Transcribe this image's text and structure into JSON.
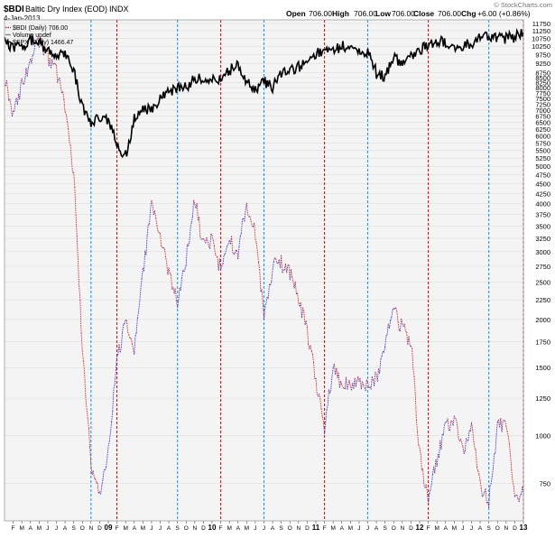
{
  "header": {
    "symbol": "$BDI",
    "name": "Baltic Dry Index (EOD)",
    "exchange": "INDX",
    "date": "4-Jan-2013",
    "open_label": "Open",
    "open": "706.00",
    "high_label": "High",
    "high": "706.00",
    "low_label": "Low",
    "low": "706.00",
    "close_label": "Close",
    "close": "706.00",
    "chg_label": "Chg",
    "chg": "+6.00 (+0.86%)",
    "source": "© StockCharts.com"
  },
  "legend": {
    "items": [
      {
        "label": "$BDI (Daily) 706.00",
        "color": "#9b3b6c",
        "dashed": true
      },
      {
        "label": "Volume undef",
        "color": "#888888",
        "dashed": false
      },
      {
        "label": "$SPX (Daily) 1466.47",
        "color": "#000000",
        "dashed": false
      }
    ]
  },
  "colors": {
    "bdi_up": "#3b3bcc",
    "bdi_down": "#cc2b2b",
    "spx": "#000000",
    "plot_bg": "#f4f4f4",
    "red_marker": "#dd1111",
    "blue_marker": "#1e9be0",
    "grid": "#d8d8d8"
  },
  "chart_data": {
    "type": "line",
    "scale": "log",
    "x_range": [
      "2008-01",
      "2013-01"
    ],
    "ylim": [
      600,
      12000
    ],
    "y_ticks": [
      750,
      1000,
      1250,
      1500,
      1750,
      2000,
      2250,
      2500,
      2750,
      3000,
      3250,
      3500,
      3750,
      4000,
      4250,
      4500,
      4750,
      5000,
      5250,
      5500,
      5750,
      6000,
      6250,
      6500,
      6750,
      7000,
      7250,
      7500,
      7750,
      8000,
      8250,
      8500,
      8750,
      9250,
      9750,
      10250,
      10750,
      11250,
      11750
    ],
    "x_tick_labels": [
      "F",
      "M",
      "A",
      "M",
      "J",
      "J",
      "A",
      "S",
      "O",
      "N",
      "D",
      "09",
      "F",
      "M",
      "A",
      "M",
      "J",
      "J",
      "A",
      "S",
      "O",
      "N",
      "D",
      "10",
      "F",
      "M",
      "A",
      "M",
      "J",
      "J",
      "A",
      "S",
      "O",
      "N",
      "D",
      "11",
      "F",
      "M",
      "A",
      "M",
      "J",
      "J",
      "A",
      "S",
      "O",
      "N",
      "D",
      "12",
      "F",
      "M",
      "A",
      "M",
      "J",
      "J",
      "A",
      "S",
      "O",
      "N",
      "D",
      "13"
    ],
    "year_tick_labels": [
      "09",
      "10",
      "11",
      "12",
      "13"
    ],
    "vertical_markers": {
      "red": [
        "F",
        "F",
        "F",
        "F",
        "D"
      ],
      "blue": [
        "N",
        "S",
        "J",
        "J",
        "S"
      ]
    },
    "series": [
      {
        "name": "$BDI (Daily)",
        "style": "dashed",
        "points": [
          [
            "2008-01",
            8600
          ],
          [
            "2008-02",
            6800
          ],
          [
            "2008-03",
            8200
          ],
          [
            "2008-04",
            9300
          ],
          [
            "2008-05",
            10700
          ],
          [
            "2008-06",
            9600
          ],
          [
            "2008-07",
            8800
          ],
          [
            "2008-08",
            7200
          ],
          [
            "2008-09",
            4800
          ],
          [
            "2008-10",
            1700
          ],
          [
            "2008-11",
            840
          ],
          [
            "2008-12",
            700
          ],
          [
            "2009-01",
            900
          ],
          [
            "2009-02",
            1600
          ],
          [
            "2009-03",
            1950
          ],
          [
            "2009-04",
            1650
          ],
          [
            "2009-05",
            2600
          ],
          [
            "2009-06",
            4000
          ],
          [
            "2009-07",
            3300
          ],
          [
            "2009-08",
            2600
          ],
          [
            "2009-09",
            2250
          ],
          [
            "2009-10",
            2900
          ],
          [
            "2009-11",
            4100
          ],
          [
            "2009-12",
            3100
          ],
          [
            "2010-01",
            3200
          ],
          [
            "2010-02",
            2700
          ],
          [
            "2010-03",
            3200
          ],
          [
            "2010-04",
            3000
          ],
          [
            "2010-05",
            4000
          ],
          [
            "2010-06",
            3400
          ],
          [
            "2010-07",
            2000
          ],
          [
            "2010-08",
            2750
          ],
          [
            "2010-09",
            2800
          ],
          [
            "2010-10",
            2650
          ],
          [
            "2010-11",
            2300
          ],
          [
            "2010-12",
            1850
          ],
          [
            "2011-01",
            1400
          ],
          [
            "2011-02",
            1050
          ],
          [
            "2011-03",
            1500
          ],
          [
            "2011-04",
            1350
          ],
          [
            "2011-05",
            1350
          ],
          [
            "2011-06",
            1400
          ],
          [
            "2011-07",
            1350
          ],
          [
            "2011-08",
            1400
          ],
          [
            "2011-09",
            1750
          ],
          [
            "2011-10",
            2100
          ],
          [
            "2011-11",
            1900
          ],
          [
            "2011-12",
            1750
          ],
          [
            "2012-01",
            900
          ],
          [
            "2012-02",
            680
          ],
          [
            "2012-03",
            870
          ],
          [
            "2012-04",
            1050
          ],
          [
            "2012-05",
            1100
          ],
          [
            "2012-06",
            920
          ],
          [
            "2012-07",
            1050
          ],
          [
            "2012-08",
            730
          ],
          [
            "2012-09",
            680
          ],
          [
            "2012-10",
            1050
          ],
          [
            "2012-11",
            1100
          ],
          [
            "2012-12",
            700
          ],
          [
            "2013-01",
            706
          ]
        ]
      },
      {
        "name": "$SPX (Daily)",
        "style": "solid",
        "points": [
          [
            "2008-01",
            1380
          ],
          [
            "2008-02",
            1330
          ],
          [
            "2008-03",
            1360
          ],
          [
            "2008-04",
            1390
          ],
          [
            "2008-05",
            1400
          ],
          [
            "2008-06",
            1300
          ],
          [
            "2008-07",
            1270
          ],
          [
            "2008-08",
            1280
          ],
          [
            "2008-09",
            1170
          ],
          [
            "2008-10",
            930
          ],
          [
            "2008-11",
            850
          ],
          [
            "2008-12",
            890
          ],
          [
            "2009-01",
            860
          ],
          [
            "2009-02",
            750
          ],
          [
            "2009-03",
            700
          ],
          [
            "2009-04",
            870
          ],
          [
            "2009-05",
            920
          ],
          [
            "2009-06",
            920
          ],
          [
            "2009-07",
            980
          ],
          [
            "2009-08",
            1020
          ],
          [
            "2009-09",
            1060
          ],
          [
            "2009-10",
            1060
          ],
          [
            "2009-11",
            1110
          ],
          [
            "2009-12",
            1120
          ],
          [
            "2010-01",
            1110
          ],
          [
            "2010-02",
            1100
          ],
          [
            "2010-03",
            1170
          ],
          [
            "2010-04",
            1200
          ],
          [
            "2010-05",
            1090
          ],
          [
            "2010-06",
            1030
          ],
          [
            "2010-07",
            1100
          ],
          [
            "2010-08",
            1050
          ],
          [
            "2010-09",
            1140
          ],
          [
            "2010-10",
            1180
          ],
          [
            "2010-11",
            1190
          ],
          [
            "2010-12",
            1260
          ],
          [
            "2011-01",
            1290
          ],
          [
            "2011-02",
            1330
          ],
          [
            "2011-03",
            1310
          ],
          [
            "2011-04",
            1360
          ],
          [
            "2011-05",
            1340
          ],
          [
            "2011-06",
            1300
          ],
          [
            "2011-07",
            1310
          ],
          [
            "2011-08",
            1150
          ],
          [
            "2011-09",
            1130
          ],
          [
            "2011-10",
            1250
          ],
          [
            "2011-11",
            1240
          ],
          [
            "2011-12",
            1260
          ],
          [
            "2012-01",
            1310
          ],
          [
            "2012-02",
            1370
          ],
          [
            "2012-03",
            1400
          ],
          [
            "2012-04",
            1390
          ],
          [
            "2012-05",
            1310
          ],
          [
            "2012-06",
            1360
          ],
          [
            "2012-07",
            1380
          ],
          [
            "2012-08",
            1410
          ],
          [
            "2012-09",
            1440
          ],
          [
            "2012-10",
            1410
          ],
          [
            "2012-11",
            1420
          ],
          [
            "2012-12",
            1420
          ],
          [
            "2013-01",
            1466
          ]
        ]
      }
    ]
  }
}
